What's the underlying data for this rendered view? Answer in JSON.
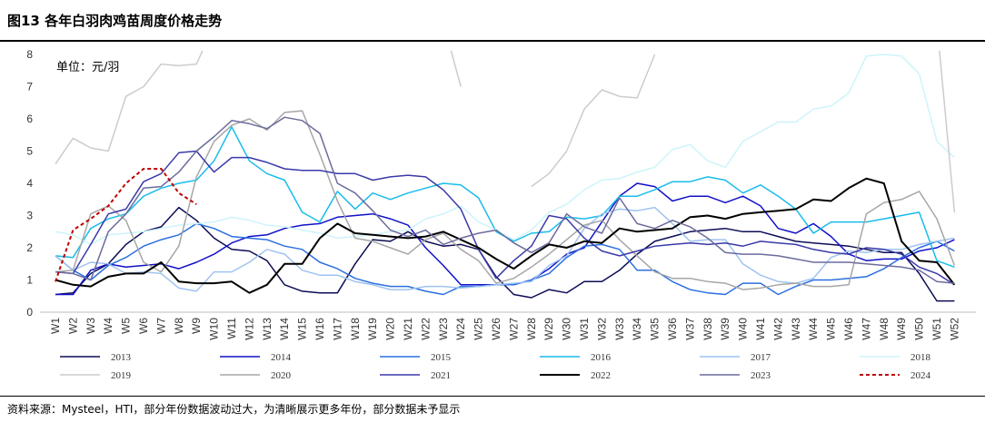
{
  "title": "图13 各年白羽肉鸡苗周度价格走势",
  "source": "资料来源：Mysteel，HTI，部分年份数据波动过大，为清晰展示更多年份，部分数据未予显示",
  "chart_data": {
    "type": "line",
    "unit_label": "单位：元/羽",
    "ylim": [
      0,
      8
    ],
    "yticks": [
      0,
      1,
      2,
      3,
      4,
      5,
      6,
      7,
      8
    ],
    "grid": false,
    "legend_position": "bottom",
    "categories": [
      "W1",
      "W2",
      "W3",
      "W4",
      "W5",
      "W6",
      "W7",
      "W8",
      "W9",
      "W10",
      "W11",
      "W12",
      "W13",
      "W14",
      "W15",
      "W16",
      "W17",
      "W18",
      "W19",
      "W20",
      "W21",
      "W22",
      "W23",
      "W24",
      "W25",
      "W26",
      "W27",
      "W28",
      "W29",
      "W30",
      "W31",
      "W32",
      "W33",
      "W34",
      "W35",
      "W36",
      "W37",
      "W38",
      "W39",
      "W40",
      "W41",
      "W42",
      "W43",
      "W44",
      "W45",
      "W46",
      "W47",
      "W48",
      "W49",
      "W50",
      "W51",
      "W52"
    ],
    "series": [
      {
        "name": "2013",
        "color": "#0c0c55",
        "width": 1.5,
        "dash": "",
        "values": [
          0.55,
          0.6,
          1.2,
          1.5,
          2.1,
          2.5,
          2.65,
          3.25,
          2.85,
          2.3,
          1.95,
          1.9,
          1.6,
          0.85,
          0.65,
          0.6,
          0.6,
          1.5,
          2.25,
          2.2,
          2.5,
          2.2,
          2.05,
          2.1,
          1.95,
          1.1,
          0.55,
          0.45,
          0.7,
          0.6,
          0.95,
          0.95,
          1.3,
          1.8,
          2.2,
          2.35,
          2.5,
          2.55,
          2.6,
          2.5,
          2.5,
          2.35,
          2.2,
          2.15,
          2.1,
          2.05,
          1.95,
          1.85,
          1.85,
          1.2,
          0.35,
          0.35
        ]
      },
      {
        "name": "2014",
        "color": "#1010c8",
        "width": 1.5,
        "dash": "",
        "values": [
          0.55,
          0.55,
          1.3,
          1.5,
          1.4,
          1.45,
          1.5,
          1.35,
          1.55,
          1.8,
          2.15,
          2.35,
          2.4,
          2.6,
          2.7,
          2.75,
          2.95,
          3.0,
          3.05,
          2.9,
          2.7,
          2.0,
          1.45,
          0.85,
          0.85,
          0.85,
          0.85,
          1.0,
          1.35,
          1.8,
          2.0,
          2.8,
          3.6,
          4.0,
          3.9,
          3.45,
          3.6,
          3.6,
          3.4,
          3.6,
          3.3,
          2.6,
          2.45,
          2.75,
          2.35,
          1.8,
          1.6,
          1.65,
          1.65,
          1.9,
          2.0,
          2.25
        ]
      },
      {
        "name": "2015",
        "color": "#2b6fe0",
        "width": 1.5,
        "dash": "",
        "values": [
          1.75,
          1.3,
          1.0,
          1.45,
          1.7,
          2.05,
          2.25,
          2.4,
          2.75,
          2.6,
          2.35,
          2.3,
          2.25,
          2.05,
          1.95,
          1.55,
          1.35,
          1.05,
          0.9,
          0.8,
          0.8,
          0.65,
          0.55,
          0.8,
          0.8,
          0.85,
          0.85,
          1.0,
          1.2,
          1.7,
          2.05,
          2.1,
          1.95,
          1.3,
          1.3,
          0.95,
          0.7,
          0.6,
          0.55,
          0.9,
          0.9,
          0.55,
          0.8,
          1.0,
          1.0,
          1.05,
          1.1,
          1.35,
          1.7,
          2.0,
          2.2,
          1.9
        ]
      },
      {
        "name": "2016",
        "color": "#19bcec",
        "width": 1.5,
        "dash": "",
        "values": [
          1.75,
          1.7,
          2.6,
          2.9,
          3.05,
          3.6,
          3.85,
          4.0,
          4.1,
          4.7,
          5.75,
          4.7,
          4.3,
          4.1,
          3.1,
          2.8,
          3.75,
          3.2,
          3.7,
          3.5,
          3.7,
          3.85,
          4.0,
          3.95,
          3.55,
          2.5,
          2.2,
          2.45,
          2.5,
          2.95,
          2.9,
          3.0,
          3.6,
          3.6,
          3.8,
          4.05,
          4.05,
          4.2,
          4.1,
          3.7,
          3.95,
          3.6,
          3.2,
          2.45,
          2.8,
          2.8,
          2.8,
          2.9,
          3.0,
          3.1,
          1.6,
          1.4
        ]
      },
      {
        "name": "2017",
        "color": "#9ec3f0",
        "width": 1.5,
        "dash": "",
        "values": [
          1.75,
          1.3,
          1.55,
          1.5,
          1.2,
          1.25,
          1.2,
          0.75,
          0.65,
          1.25,
          1.25,
          1.55,
          1.95,
          1.8,
          1.3,
          1.15,
          1.15,
          0.95,
          0.85,
          0.7,
          0.7,
          0.8,
          0.8,
          0.75,
          0.8,
          0.85,
          0.9,
          0.95,
          1.45,
          1.75,
          2.6,
          3.05,
          3.2,
          3.15,
          3.25,
          2.75,
          2.2,
          2.25,
          2.25,
          1.5,
          1.15,
          0.95,
          0.9,
          1.05,
          1.7,
          1.9,
          1.85,
          1.95,
          1.95,
          2.1,
          2.2,
          2.3
        ]
      },
      {
        "name": "2018",
        "color": "#cdf4fb",
        "width": 1.5,
        "dash": "",
        "values": [
          2.5,
          2.4,
          2.1,
          2.4,
          2.45,
          2.5,
          2.6,
          2.7,
          2.75,
          2.8,
          2.95,
          2.85,
          2.7,
          2.65,
          2.55,
          2.45,
          2.3,
          2.35,
          2.4,
          2.5,
          2.55,
          2.9,
          3.05,
          3.3,
          2.8,
          2.55,
          2.25,
          2.55,
          3.1,
          3.35,
          3.8,
          4.1,
          4.15,
          4.35,
          4.5,
          5.05,
          5.2,
          4.7,
          4.5,
          5.3,
          5.6,
          5.9,
          5.9,
          6.3,
          6.4,
          6.8,
          7.95,
          8.0,
          7.95,
          7.4,
          5.3,
          4.8
        ]
      },
      {
        "name": "2019",
        "color": "#cccccc",
        "width": 1.5,
        "dash": "",
        "values": [
          4.6,
          5.4,
          5.1,
          5.0,
          6.7,
          7.0,
          7.7,
          7.65,
          7.7,
          8.9,
          null,
          null,
          null,
          null,
          null,
          null,
          null,
          null,
          null,
          null,
          null,
          null,
          9.0,
          7.0,
          null,
          null,
          null,
          3.9,
          4.3,
          5.0,
          6.3,
          6.9,
          6.7,
          6.65,
          8.0,
          null,
          null,
          null,
          null,
          null,
          null,
          null,
          null,
          null,
          null,
          null,
          null,
          null,
          null,
          null,
          9.0,
          3.1
        ]
      },
      {
        "name": "2020",
        "color": "#a6a6a6",
        "width": 1.5,
        "dash": "",
        "values": [
          1.25,
          1.3,
          3.05,
          3.3,
          2.85,
          1.55,
          1.25,
          2.05,
          4.2,
          5.3,
          5.8,
          6.0,
          5.65,
          6.2,
          6.25,
          4.9,
          3.45,
          2.3,
          2.2,
          2.0,
          1.8,
          2.25,
          2.45,
          1.95,
          1.6,
          0.9,
          1.05,
          1.4,
          1.8,
          2.25,
          2.7,
          2.85,
          2.25,
          1.75,
          1.25,
          1.05,
          1.05,
          0.95,
          0.9,
          0.7,
          0.75,
          0.85,
          0.9,
          0.8,
          0.8,
          0.85,
          3.05,
          3.4,
          3.5,
          3.75,
          2.9,
          1.45
        ]
      },
      {
        "name": "2021",
        "color": "#3a3aaa",
        "width": 1.5,
        "dash": "",
        "values": [
          1.25,
          1.2,
          2.1,
          3.05,
          3.2,
          4.05,
          4.3,
          4.95,
          5.0,
          4.35,
          4.8,
          4.8,
          4.65,
          4.45,
          4.4,
          4.4,
          4.3,
          4.3,
          4.1,
          4.2,
          4.25,
          4.2,
          3.8,
          3.2,
          1.95,
          1.05,
          1.6,
          2.05,
          3.0,
          2.9,
          2.3,
          1.9,
          1.75,
          1.9,
          2.05,
          2.1,
          2.15,
          2.1,
          2.15,
          2.05,
          2.2,
          2.15,
          2.1,
          1.95,
          1.85,
          1.8,
          2.0,
          1.95,
          1.8,
          1.4,
          1.2,
          0.85
        ]
      },
      {
        "name": "2022",
        "color": "#000000",
        "width": 2.0,
        "dash": "",
        "values": [
          1.0,
          0.85,
          0.8,
          1.1,
          1.2,
          1.2,
          1.55,
          0.95,
          0.9,
          0.9,
          0.95,
          0.6,
          0.85,
          1.5,
          1.5,
          2.3,
          2.75,
          2.45,
          2.4,
          2.35,
          2.3,
          2.35,
          2.5,
          2.25,
          2.0,
          1.65,
          1.35,
          1.75,
          2.1,
          2.0,
          2.2,
          2.15,
          2.6,
          2.5,
          2.55,
          2.6,
          2.95,
          3.0,
          2.9,
          3.05,
          3.1,
          3.15,
          3.2,
          3.5,
          3.45,
          3.85,
          4.15,
          4.0,
          2.2,
          1.6,
          1.55,
          0.85
        ]
      },
      {
        "name": "2023",
        "color": "#6b6b9e",
        "width": 1.5,
        "dash": "",
        "values": [
          1.25,
          1.2,
          1.0,
          2.5,
          3.05,
          3.85,
          3.9,
          4.35,
          5.0,
          5.45,
          5.95,
          5.85,
          5.7,
          6.05,
          5.95,
          5.55,
          4.0,
          3.7,
          3.15,
          2.55,
          2.35,
          2.55,
          2.1,
          2.3,
          2.45,
          2.55,
          2.15,
          1.85,
          2.15,
          3.05,
          2.65,
          2.45,
          3.55,
          2.75,
          2.6,
          2.85,
          2.65,
          2.3,
          1.85,
          1.8,
          1.8,
          1.75,
          1.65,
          1.55,
          1.55,
          1.55,
          1.5,
          1.45,
          1.4,
          1.3,
          0.95,
          0.9
        ]
      },
      {
        "name": "2024",
        "color": "#c00000",
        "width": 2.0,
        "dash": "4,3",
        "values": [
          0.95,
          2.55,
          2.9,
          3.3,
          4.0,
          4.45,
          4.45,
          3.7,
          3.35,
          null,
          null,
          null,
          null,
          null,
          null,
          null,
          null,
          null,
          null,
          null,
          null,
          null,
          null,
          null,
          null,
          null,
          null,
          null,
          null,
          null,
          null,
          null,
          null,
          null,
          null,
          null,
          null,
          null,
          null,
          null,
          null,
          null,
          null,
          null,
          null,
          null,
          null,
          null,
          null,
          null,
          null,
          null
        ]
      }
    ]
  }
}
